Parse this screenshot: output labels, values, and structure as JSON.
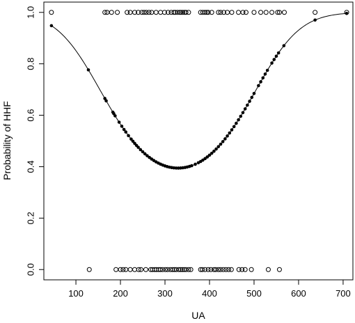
{
  "chart_data": {
    "type": "scatter",
    "xlabel": "UA",
    "ylabel": "Probability of HHF",
    "xlim": [
      28,
      722
    ],
    "ylim": [
      -0.04,
      1.04
    ],
    "x_ticks": [
      100,
      200,
      300,
      400,
      500,
      600,
      700
    ],
    "y_ticks": [
      0.0,
      0.2,
      0.4,
      0.6,
      0.8,
      1.0
    ],
    "y_tick_labels": [
      "0.0",
      "0.2",
      "0.4",
      "0.6",
      "0.8",
      "1.0"
    ],
    "grid": false,
    "logit_fit": {
      "b0": 4.05,
      "b1": -0.0272,
      "b2": 4.13e-05
    },
    "observed_events": {
      "y": 1,
      "x": [
        45,
        165,
        170,
        180,
        193,
        215,
        222,
        232,
        240,
        248,
        253,
        258,
        264,
        270,
        280,
        290,
        299,
        307,
        314,
        320,
        323,
        328,
        333,
        336,
        340,
        344,
        347,
        353,
        380,
        385,
        390,
        394,
        397,
        405,
        420,
        425,
        432,
        440,
        450,
        465,
        475,
        482,
        500,
        515,
        527,
        540,
        553,
        557,
        568,
        637,
        708
      ]
    },
    "observed_nonevents": {
      "y": 0,
      "x": [
        130,
        190,
        200,
        206,
        212,
        222,
        232,
        241,
        246,
        257,
        268,
        272,
        277,
        281,
        286,
        290,
        295,
        301,
        306,
        312,
        317,
        321,
        325,
        331,
        335,
        339,
        343,
        347,
        353,
        358,
        380,
        384,
        390,
        397,
        403,
        410,
        414,
        420,
        425,
        431,
        437,
        443,
        449,
        466,
        473,
        480,
        494,
        532,
        557
      ]
    },
    "fitted_x": [
      45,
      128,
      165,
      168,
      183,
      185,
      188,
      197,
      203,
      208,
      212,
      218,
      224,
      228,
      232,
      236,
      240,
      245,
      250,
      255,
      260,
      265,
      270,
      275,
      280,
      285,
      290,
      295,
      300,
      305,
      310,
      315,
      320,
      325,
      330,
      335,
      340,
      345,
      350,
      355,
      360,
      368,
      375,
      380,
      385,
      390,
      395,
      400,
      405,
      410,
      415,
      420,
      425,
      430,
      435,
      440,
      445,
      450,
      455,
      460,
      465,
      470,
      475,
      480,
      485,
      490,
      495,
      500,
      510,
      515,
      520,
      525,
      530,
      540,
      545,
      550,
      555,
      567,
      637,
      708
    ]
  }
}
